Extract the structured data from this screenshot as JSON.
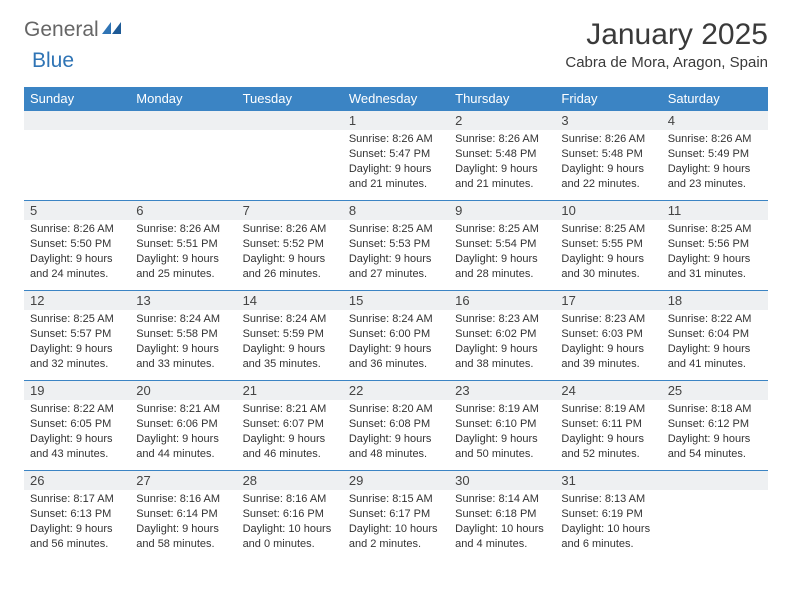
{
  "logo": {
    "general": "General",
    "blue": "Blue"
  },
  "title": "January 2025",
  "location": "Cabra de Mora, Aragon, Spain",
  "colors": {
    "header_bg": "#3b84c4",
    "header_text": "#ffffff",
    "daybar_bg": "#eef0f2",
    "border": "#3b84c4",
    "logo_accent": "#2f74b5"
  },
  "weekdays": [
    "Sunday",
    "Monday",
    "Tuesday",
    "Wednesday",
    "Thursday",
    "Friday",
    "Saturday"
  ],
  "weeks": [
    [
      {
        "blank": true
      },
      {
        "blank": true
      },
      {
        "blank": true
      },
      {
        "day": "1",
        "sunrise": "Sunrise: 8:26 AM",
        "sunset": "Sunset: 5:47 PM",
        "l1": "Daylight: 9 hours",
        "l2": "and 21 minutes."
      },
      {
        "day": "2",
        "sunrise": "Sunrise: 8:26 AM",
        "sunset": "Sunset: 5:48 PM",
        "l1": "Daylight: 9 hours",
        "l2": "and 21 minutes."
      },
      {
        "day": "3",
        "sunrise": "Sunrise: 8:26 AM",
        "sunset": "Sunset: 5:48 PM",
        "l1": "Daylight: 9 hours",
        "l2": "and 22 minutes."
      },
      {
        "day": "4",
        "sunrise": "Sunrise: 8:26 AM",
        "sunset": "Sunset: 5:49 PM",
        "l1": "Daylight: 9 hours",
        "l2": "and 23 minutes."
      }
    ],
    [
      {
        "day": "5",
        "sunrise": "Sunrise: 8:26 AM",
        "sunset": "Sunset: 5:50 PM",
        "l1": "Daylight: 9 hours",
        "l2": "and 24 minutes."
      },
      {
        "day": "6",
        "sunrise": "Sunrise: 8:26 AM",
        "sunset": "Sunset: 5:51 PM",
        "l1": "Daylight: 9 hours",
        "l2": "and 25 minutes."
      },
      {
        "day": "7",
        "sunrise": "Sunrise: 8:26 AM",
        "sunset": "Sunset: 5:52 PM",
        "l1": "Daylight: 9 hours",
        "l2": "and 26 minutes."
      },
      {
        "day": "8",
        "sunrise": "Sunrise: 8:25 AM",
        "sunset": "Sunset: 5:53 PM",
        "l1": "Daylight: 9 hours",
        "l2": "and 27 minutes."
      },
      {
        "day": "9",
        "sunrise": "Sunrise: 8:25 AM",
        "sunset": "Sunset: 5:54 PM",
        "l1": "Daylight: 9 hours",
        "l2": "and 28 minutes."
      },
      {
        "day": "10",
        "sunrise": "Sunrise: 8:25 AM",
        "sunset": "Sunset: 5:55 PM",
        "l1": "Daylight: 9 hours",
        "l2": "and 30 minutes."
      },
      {
        "day": "11",
        "sunrise": "Sunrise: 8:25 AM",
        "sunset": "Sunset: 5:56 PM",
        "l1": "Daylight: 9 hours",
        "l2": "and 31 minutes."
      }
    ],
    [
      {
        "day": "12",
        "sunrise": "Sunrise: 8:25 AM",
        "sunset": "Sunset: 5:57 PM",
        "l1": "Daylight: 9 hours",
        "l2": "and 32 minutes."
      },
      {
        "day": "13",
        "sunrise": "Sunrise: 8:24 AM",
        "sunset": "Sunset: 5:58 PM",
        "l1": "Daylight: 9 hours",
        "l2": "and 33 minutes."
      },
      {
        "day": "14",
        "sunrise": "Sunrise: 8:24 AM",
        "sunset": "Sunset: 5:59 PM",
        "l1": "Daylight: 9 hours",
        "l2": "and 35 minutes."
      },
      {
        "day": "15",
        "sunrise": "Sunrise: 8:24 AM",
        "sunset": "Sunset: 6:00 PM",
        "l1": "Daylight: 9 hours",
        "l2": "and 36 minutes."
      },
      {
        "day": "16",
        "sunrise": "Sunrise: 8:23 AM",
        "sunset": "Sunset: 6:02 PM",
        "l1": "Daylight: 9 hours",
        "l2": "and 38 minutes."
      },
      {
        "day": "17",
        "sunrise": "Sunrise: 8:23 AM",
        "sunset": "Sunset: 6:03 PM",
        "l1": "Daylight: 9 hours",
        "l2": "and 39 minutes."
      },
      {
        "day": "18",
        "sunrise": "Sunrise: 8:22 AM",
        "sunset": "Sunset: 6:04 PM",
        "l1": "Daylight: 9 hours",
        "l2": "and 41 minutes."
      }
    ],
    [
      {
        "day": "19",
        "sunrise": "Sunrise: 8:22 AM",
        "sunset": "Sunset: 6:05 PM",
        "l1": "Daylight: 9 hours",
        "l2": "and 43 minutes."
      },
      {
        "day": "20",
        "sunrise": "Sunrise: 8:21 AM",
        "sunset": "Sunset: 6:06 PM",
        "l1": "Daylight: 9 hours",
        "l2": "and 44 minutes."
      },
      {
        "day": "21",
        "sunrise": "Sunrise: 8:21 AM",
        "sunset": "Sunset: 6:07 PM",
        "l1": "Daylight: 9 hours",
        "l2": "and 46 minutes."
      },
      {
        "day": "22",
        "sunrise": "Sunrise: 8:20 AM",
        "sunset": "Sunset: 6:08 PM",
        "l1": "Daylight: 9 hours",
        "l2": "and 48 minutes."
      },
      {
        "day": "23",
        "sunrise": "Sunrise: 8:19 AM",
        "sunset": "Sunset: 6:10 PM",
        "l1": "Daylight: 9 hours",
        "l2": "and 50 minutes."
      },
      {
        "day": "24",
        "sunrise": "Sunrise: 8:19 AM",
        "sunset": "Sunset: 6:11 PM",
        "l1": "Daylight: 9 hours",
        "l2": "and 52 minutes."
      },
      {
        "day": "25",
        "sunrise": "Sunrise: 8:18 AM",
        "sunset": "Sunset: 6:12 PM",
        "l1": "Daylight: 9 hours",
        "l2": "and 54 minutes."
      }
    ],
    [
      {
        "day": "26",
        "sunrise": "Sunrise: 8:17 AM",
        "sunset": "Sunset: 6:13 PM",
        "l1": "Daylight: 9 hours",
        "l2": "and 56 minutes."
      },
      {
        "day": "27",
        "sunrise": "Sunrise: 8:16 AM",
        "sunset": "Sunset: 6:14 PM",
        "l1": "Daylight: 9 hours",
        "l2": "and 58 minutes."
      },
      {
        "day": "28",
        "sunrise": "Sunrise: 8:16 AM",
        "sunset": "Sunset: 6:16 PM",
        "l1": "Daylight: 10 hours",
        "l2": "and 0 minutes."
      },
      {
        "day": "29",
        "sunrise": "Sunrise: 8:15 AM",
        "sunset": "Sunset: 6:17 PM",
        "l1": "Daylight: 10 hours",
        "l2": "and 2 minutes."
      },
      {
        "day": "30",
        "sunrise": "Sunrise: 8:14 AM",
        "sunset": "Sunset: 6:18 PM",
        "l1": "Daylight: 10 hours",
        "l2": "and 4 minutes."
      },
      {
        "day": "31",
        "sunrise": "Sunrise: 8:13 AM",
        "sunset": "Sunset: 6:19 PM",
        "l1": "Daylight: 10 hours",
        "l2": "and 6 minutes."
      },
      {
        "blank": true
      }
    ]
  ]
}
